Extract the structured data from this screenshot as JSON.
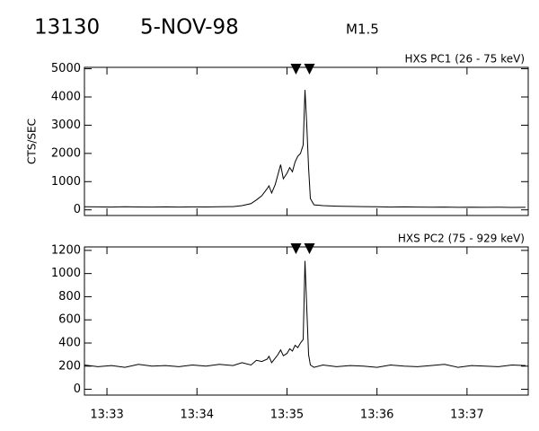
{
  "header": {
    "id": "13130",
    "date": "5-NOV-98",
    "class": "M1.5"
  },
  "chart_data": [
    {
      "type": "line",
      "title": "HXS PC1 (26 - 75 keV)",
      "y_label": "CTS/SEC",
      "color": "#000000",
      "x": [
        32.75,
        32.9,
        33.05,
        33.2,
        33.35,
        33.5,
        33.65,
        33.8,
        33.95,
        34.1,
        34.25,
        34.4,
        34.5,
        34.6,
        34.66,
        34.72,
        34.78,
        34.8,
        34.83,
        34.87,
        34.9,
        34.93,
        34.96,
        35.0,
        35.03,
        35.06,
        35.09,
        35.12,
        35.15,
        35.18,
        35.2,
        35.22,
        35.24,
        35.26,
        35.3,
        35.4,
        35.55,
        35.7,
        35.85,
        36.0,
        36.15,
        36.3,
        36.45,
        36.6,
        36.75,
        36.9,
        37.05,
        37.2,
        37.35,
        37.5,
        37.65
      ],
      "values": [
        110,
        105,
        100,
        108,
        102,
        98,
        104,
        100,
        106,
        102,
        110,
        115,
        150,
        220,
        350,
        500,
        750,
        850,
        600,
        900,
        1250,
        1600,
        1100,
        1300,
        1500,
        1350,
        1700,
        1900,
        2000,
        2300,
        4250,
        3000,
        1500,
        400,
        180,
        150,
        130,
        120,
        115,
        110,
        100,
        105,
        100,
        95,
        100,
        90,
        95,
        88,
        92,
        85,
        90
      ],
      "xlim": [
        32.75,
        37.68
      ],
      "xticks": [
        33,
        34,
        35,
        36,
        37
      ],
      "ylim": [
        -200,
        5050
      ],
      "yticks": [
        0,
        1000,
        2000,
        3000,
        4000,
        5000
      ],
      "markers": [
        35.1,
        35.25
      ]
    },
    {
      "type": "line",
      "title": "HXS PC2 (75 - 929 keV)",
      "color": "#000000",
      "x": [
        32.75,
        32.9,
        33.05,
        33.2,
        33.35,
        33.5,
        33.65,
        33.8,
        33.95,
        34.1,
        34.25,
        34.4,
        34.5,
        34.6,
        34.66,
        34.72,
        34.78,
        34.8,
        34.83,
        34.87,
        34.9,
        34.93,
        34.96,
        35.0,
        35.03,
        35.06,
        35.09,
        35.12,
        35.15,
        35.18,
        35.2,
        35.22,
        35.24,
        35.26,
        35.3,
        35.4,
        35.55,
        35.7,
        35.85,
        36.0,
        36.15,
        36.3,
        36.45,
        36.6,
        36.75,
        36.9,
        37.05,
        37.2,
        37.35,
        37.5,
        37.65
      ],
      "values": [
        210,
        195,
        205,
        190,
        215,
        200,
        205,
        195,
        210,
        200,
        215,
        205,
        230,
        210,
        250,
        240,
        260,
        285,
        230,
        270,
        300,
        340,
        290,
        310,
        350,
        330,
        380,
        360,
        400,
        430,
        1110,
        700,
        300,
        210,
        190,
        210,
        195,
        205,
        200,
        190,
        210,
        200,
        195,
        205,
        215,
        190,
        205,
        200,
        195,
        210,
        205
      ],
      "xlim": [
        32.75,
        37.68
      ],
      "xticks": [
        {
          "value": 33,
          "label": "13:33"
        },
        {
          "value": 34,
          "label": "13:34"
        },
        {
          "value": 35,
          "label": "13:35"
        },
        {
          "value": 36,
          "label": "13:36"
        },
        {
          "value": 37,
          "label": "13:37"
        }
      ],
      "ylim": [
        -50,
        1230
      ],
      "yticks": [
        0,
        200,
        400,
        600,
        800,
        1000,
        1200
      ],
      "markers": [
        35.1,
        35.25
      ]
    }
  ]
}
